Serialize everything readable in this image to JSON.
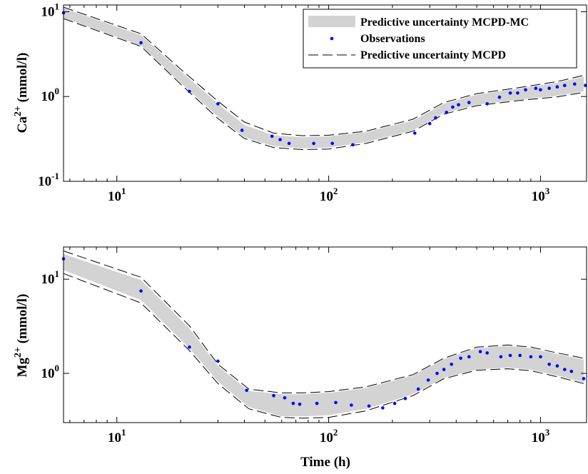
{
  "colors": {
    "band": "#d3d3d3",
    "observations": "#0000ff",
    "dashed": "#000000",
    "axes": "#000000"
  },
  "legend": {
    "placement": "top-right of top panel",
    "items": [
      {
        "label": "Predictive uncertainty MCPD-MC",
        "style": "band"
      },
      {
        "label": "Observations",
        "style": "dots"
      },
      {
        "label": "Predictive uncertainty MCPD",
        "style": "dashed"
      }
    ]
  },
  "xaxis": {
    "label": "Time (h)",
    "scale": "log",
    "ticks": [
      "10",
      "10",
      "10"
    ],
    "tick_exponents": [
      "1",
      "2",
      "3"
    ],
    "tick_values": [
      10,
      100,
      1000
    ],
    "xlim": [
      5.6,
      1650
    ]
  },
  "chart_data": [
    {
      "type": "line",
      "ylabel_main": "Ca",
      "ylabel_sup": "2+",
      "ylabel_unit": " (mmol/l)",
      "yscale": "log",
      "ylim": [
        0.1,
        12
      ],
      "yticks": [
        {
          "base": "10",
          "exp": "1",
          "value": 10
        },
        {
          "base": "10",
          "exp": "0",
          "value": 1
        },
        {
          "base": "10",
          "exp": "-1",
          "value": 0.1
        }
      ],
      "band_x": [
        5.6,
        13,
        20,
        30,
        40,
        55,
        75,
        100,
        150,
        250,
        350,
        500,
        800,
        1200,
        1600
      ],
      "mc_upper": [
        11.0,
        5.3,
        2.0,
        0.82,
        0.46,
        0.35,
        0.33,
        0.34,
        0.38,
        0.52,
        0.82,
        1.05,
        1.25,
        1.45,
        1.72
      ],
      "mc_lower": [
        8.5,
        4.0,
        1.45,
        0.58,
        0.33,
        0.26,
        0.245,
        0.25,
        0.29,
        0.4,
        0.64,
        0.8,
        0.92,
        1.02,
        1.15
      ],
      "mcpd_upper": [
        11.3,
        5.5,
        2.1,
        0.88,
        0.5,
        0.37,
        0.345,
        0.35,
        0.39,
        0.54,
        0.85,
        1.08,
        1.28,
        1.5,
        1.78
      ],
      "mcpd_lower": [
        8.3,
        3.9,
        1.4,
        0.55,
        0.32,
        0.25,
        0.237,
        0.24,
        0.28,
        0.39,
        0.62,
        0.78,
        0.9,
        0.99,
        1.12
      ],
      "observations": {
        "x": [
          5.6,
          13,
          22,
          30,
          39,
          54,
          59,
          65,
          85,
          104,
          130,
          255,
          300,
          320,
          360,
          385,
          410,
          460,
          560,
          640,
          720,
          780,
          850,
          950,
          1000,
          1100,
          1200,
          1300,
          1450,
          1630
        ],
        "y": [
          9.7,
          4.3,
          1.15,
          0.82,
          0.4,
          0.34,
          0.31,
          0.28,
          0.28,
          0.28,
          0.27,
          0.37,
          0.48,
          0.56,
          0.65,
          0.75,
          0.8,
          0.85,
          0.82,
          0.98,
          1.1,
          1.1,
          1.2,
          1.25,
          1.2,
          1.25,
          1.3,
          1.35,
          1.4,
          1.35
        ]
      }
    },
    {
      "type": "line",
      "ylabel_main": "Mg",
      "ylabel_sup": "2+",
      "ylabel_unit": " (mmol/l)",
      "yscale": "log",
      "ylim": [
        0.3,
        22
      ],
      "yticks": [
        {
          "base": "10",
          "exp": "1",
          "value": 10
        },
        {
          "base": "10",
          "exp": "0",
          "value": 1
        }
      ],
      "band_x": [
        5.6,
        13,
        22,
        30,
        42,
        60,
        75,
        100,
        150,
        250,
        350,
        500,
        700,
        900,
        1200,
        1600
      ],
      "mc_upper": [
        18.5,
        9.8,
        3.0,
        1.2,
        0.65,
        0.6,
        0.6,
        0.62,
        0.7,
        0.95,
        1.42,
        1.85,
        1.95,
        1.85,
        1.6,
        1.4
      ],
      "mc_lower": [
        12.5,
        6.0,
        1.85,
        0.82,
        0.44,
        0.35,
        0.35,
        0.36,
        0.42,
        0.6,
        0.9,
        1.1,
        1.15,
        1.1,
        0.95,
        0.8
      ],
      "mcpd_upper": [
        20.0,
        10.5,
        3.2,
        1.25,
        0.68,
        0.62,
        0.62,
        0.64,
        0.72,
        0.97,
        1.45,
        1.9,
        2.0,
        1.9,
        1.65,
        1.45
      ],
      "mcpd_lower": [
        11.5,
        5.6,
        1.75,
        0.78,
        0.42,
        0.34,
        0.335,
        0.34,
        0.4,
        0.58,
        0.88,
        1.08,
        1.12,
        1.07,
        0.92,
        0.78
      ],
      "observations": {
        "x": [
          5.6,
          13,
          22,
          30,
          41,
          55,
          62,
          68,
          73,
          88,
          108,
          128,
          155,
          180,
          205,
          230,
          265,
          295,
          325,
          350,
          380,
          420,
          460,
          520,
          560,
          650,
          720,
          800,
          900,
          1000,
          1100,
          1200,
          1300,
          1400,
          1600
        ],
        "y": [
          16.5,
          7.5,
          1.9,
          1.35,
          0.66,
          0.58,
          0.55,
          0.48,
          0.47,
          0.48,
          0.49,
          0.46,
          0.45,
          0.43,
          0.48,
          0.54,
          0.68,
          0.85,
          1.0,
          1.1,
          1.25,
          1.45,
          1.5,
          1.7,
          1.65,
          1.5,
          1.55,
          1.55,
          1.5,
          1.5,
          1.25,
          1.2,
          1.1,
          1.05,
          0.88
        ]
      }
    }
  ]
}
